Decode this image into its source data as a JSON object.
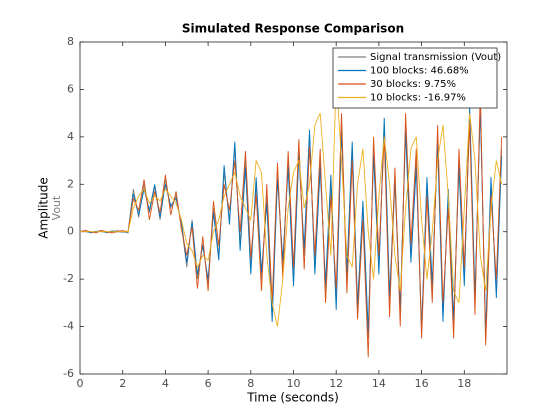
{
  "chart_data": {
    "type": "line",
    "title": "Simulated Response Comparison",
    "xlabel": "Time (seconds)",
    "ylabel": "Amplitude",
    "ysublabel": "Vout",
    "xlim": [
      0,
      20
    ],
    "ylim": [
      -6,
      8
    ],
    "xticks": [
      0,
      2,
      4,
      6,
      8,
      10,
      12,
      14,
      16,
      18
    ],
    "yticks": [
      -6,
      -4,
      -2,
      0,
      2,
      4,
      6,
      8
    ],
    "legend": "upper right",
    "x": [
      0,
      0.25,
      0.5,
      0.75,
      1,
      1.25,
      1.5,
      1.75,
      2,
      2.25,
      2.5,
      2.75,
      3,
      3.25,
      3.5,
      3.75,
      4,
      4.25,
      4.5,
      4.75,
      5,
      5.25,
      5.5,
      5.75,
      6,
      6.25,
      6.5,
      6.75,
      7,
      7.25,
      7.5,
      7.75,
      8,
      8.25,
      8.5,
      8.75,
      9,
      9.25,
      9.5,
      9.75,
      10,
      10.25,
      10.5,
      10.75,
      11,
      11.25,
      11.5,
      11.75,
      12,
      12.25,
      12.5,
      12.75,
      13,
      13.25,
      13.5,
      13.75,
      14,
      14.25,
      14.5,
      14.75,
      15,
      15.25,
      15.5,
      15.75,
      16,
      16.25,
      16.5,
      16.75,
      17,
      17.25,
      17.5,
      17.75,
      18,
      18.25,
      18.5,
      18.75,
      19,
      19.25,
      19.5,
      19.75
    ],
    "series": [
      {
        "name": "Signal transmission (Vout)",
        "color": "#7f7f7f",
        "values": [
          0,
          0.05,
          -0.05,
          0,
          0.05,
          -0.05,
          0,
          0.05,
          0,
          -0.05,
          1.8,
          0.6,
          2.0,
          0.8,
          1.9,
          0.5,
          2.2,
          1.0,
          1.5,
          0.3,
          -1.5,
          0.5,
          -2.0,
          -0.5,
          -2.2,
          1.0,
          -1.0,
          2.5,
          0.5,
          3.5,
          -0.5,
          3.0,
          -1.5,
          2.0,
          -2.0,
          1.5,
          -3.5,
          2.5,
          -1.5,
          3.0,
          -2.0,
          3.5,
          -1.0,
          4.0,
          -1.5,
          3.0,
          -2.5,
          2.0,
          -3.0,
          4.5,
          -2.0,
          3.5,
          -3.0,
          1.0,
          -4.5,
          3.5,
          -1.5,
          4.5,
          -3.0,
          2.0,
          -3.5,
          4.5,
          -1.0,
          3.0,
          -4.0,
          2.0,
          -2.5,
          4.0,
          -3.5,
          1.5,
          -4.0,
          3.0,
          -2.0,
          5.0,
          -3.0,
          5.5,
          -4.5,
          2.0,
          -2.5,
          3.5
        ]
      },
      {
        "name": "100 blocks: 46.68%",
        "color": "#0072bd",
        "values": [
          0.02,
          0,
          -0.03,
          0.02,
          0,
          -0.02,
          0.03,
          0,
          -0.02,
          0,
          1.6,
          0.7,
          1.8,
          0.9,
          2.0,
          0.6,
          2.0,
          1.1,
          1.4,
          0.4,
          -1.3,
          0.4,
          -1.8,
          -0.6,
          -2.0,
          0.8,
          -1.2,
          2.8,
          0.3,
          3.8,
          -0.8,
          2.7,
          -1.8,
          2.3,
          -1.7,
          1.2,
          -3.8,
          2.2,
          -1.2,
          2.7,
          -2.3,
          3.2,
          -0.7,
          4.3,
          -1.8,
          2.7,
          -2.2,
          2.4,
          -3.3,
          4.2,
          -1.7,
          3.8,
          -3.3,
          1.3,
          -4.2,
          3.2,
          -1.8,
          4.8,
          -2.7,
          2.3,
          -3.2,
          4.2,
          -1.3,
          2.7,
          -4.3,
          2.3,
          -2.2,
          3.7,
          -3.8,
          1.8,
          -3.7,
          2.7,
          -2.3,
          5.3,
          -2.7,
          5.2,
          -4.2,
          2.3,
          -2.8,
          3.2
        ]
      },
      {
        "name": "30 blocks: 9.75%",
        "color": "#d95319",
        "values": [
          0,
          0.05,
          0,
          -0.05,
          0.05,
          0,
          -0.05,
          0,
          0.05,
          0,
          1.4,
          0.9,
          2.2,
          0.5,
          1.7,
          0.8,
          2.4,
          0.7,
          1.7,
          0.1,
          -1.0,
          0.2,
          -2.4,
          -0.2,
          -2.5,
          1.3,
          -0.6,
          2.0,
          0.9,
          3.0,
          0.0,
          3.4,
          -1.1,
          1.6,
          -2.5,
          2.0,
          -3.0,
          2.9,
          -2.0,
          3.4,
          -1.5,
          3.9,
          -1.6,
          3.6,
          -1.0,
          3.5,
          -3.0,
          1.5,
          -2.4,
          5.0,
          -2.6,
          3.0,
          -3.7,
          0.5,
          -5.3,
          4.0,
          -1.0,
          4.0,
          -3.6,
          2.7,
          -4.0,
          5.0,
          -0.5,
          3.5,
          -4.5,
          1.5,
          -3.0,
          4.5,
          -3.0,
          1.0,
          -4.5,
          3.5,
          -1.5,
          4.6,
          -3.5,
          6.0,
          -4.8,
          1.5,
          -2.0,
          4.0
        ]
      },
      {
        "name": "10 blocks: -16.97%",
        "color": "#edb120",
        "values": [
          0,
          0,
          0,
          0,
          0,
          0,
          0,
          0,
          0,
          0,
          1.0,
          1.5,
          1.8,
          1.2,
          1.5,
          1.3,
          1.8,
          1.5,
          1.2,
          0.5,
          -0.5,
          -0.8,
          -1.5,
          -1.0,
          -1.2,
          0,
          0.5,
          1.5,
          2.0,
          2.5,
          1.5,
          1.0,
          0.5,
          3.0,
          2.5,
          -1.0,
          -3.0,
          -4.0,
          -2.0,
          1.0,
          2.5,
          3.0,
          1.0,
          2.0,
          4.5,
          5.0,
          2.0,
          -1.0,
          6.5,
          3.0,
          -1.0,
          -1.5,
          2.0,
          3.5,
          0.0,
          -2.0,
          1.5,
          4.0,
          2.0,
          -1.0,
          -2.5,
          1.0,
          3.5,
          4.0,
          0.5,
          -2.0,
          0.0,
          3.0,
          4.5,
          1.5,
          -2.5,
          -3.0,
          1.0,
          5.0,
          3.0,
          -1.0,
          -2.5,
          1.0,
          3.0,
          2.0
        ]
      }
    ]
  }
}
